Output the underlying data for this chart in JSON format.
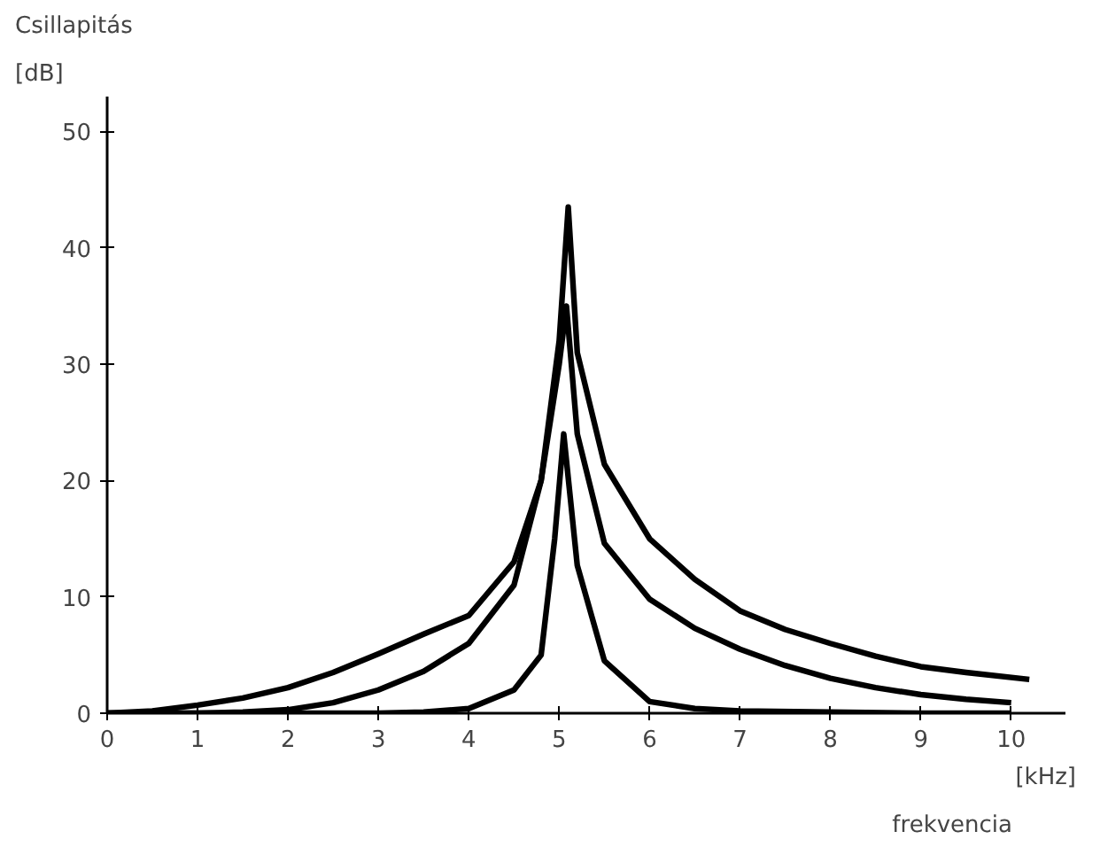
{
  "chart_data": {
    "type": "line",
    "xlabel": "frekvencia",
    "ylabel": "Csillapitás",
    "annotations": [
      "[dB]",
      "[kHz]"
    ],
    "xlim": [
      0,
      10.6
    ],
    "ylim": [
      0,
      53
    ],
    "xticks": [
      0,
      1,
      2,
      3,
      4,
      5,
      6,
      7,
      8,
      9,
      10
    ],
    "yticks": [
      0,
      10,
      20,
      30,
      40,
      50
    ],
    "grid": false,
    "marker": "none",
    "line_style": "solid",
    "series": [
      {
        "color": "#000000",
        "x": [
          0,
          0.5,
          1,
          1.5,
          2,
          2.5,
          3,
          3.5,
          4,
          4.5,
          4.8,
          5,
          5.1,
          5.2,
          5.5,
          6,
          6.5,
          7,
          7.5,
          8,
          8.5,
          9,
          9.5,
          10.2
        ],
        "values": [
          0,
          0.2,
          0.7,
          1.3,
          2.2,
          3.5,
          5.1,
          6.8,
          8.4,
          13,
          20,
          32,
          43.5,
          31,
          21.4,
          15,
          11.5,
          8.8,
          7.2,
          6,
          4.9,
          4,
          3.5,
          2.9
        ]
      },
      {
        "color": "#000000",
        "x": [
          0,
          1,
          1.5,
          2,
          2.5,
          3,
          3.5,
          4,
          4.5,
          4.8,
          5,
          5.08,
          5.2,
          5.5,
          6,
          6.5,
          7,
          7.5,
          8,
          8.5,
          9,
          9.5,
          10
        ],
        "values": [
          0,
          0,
          0.1,
          0.3,
          0.9,
          2,
          3.6,
          6,
          11,
          20,
          30,
          35,
          24,
          14.6,
          9.8,
          7.3,
          5.5,
          4.1,
          3,
          2.2,
          1.6,
          1.2,
          0.9
        ]
      },
      {
        "color": "#000000",
        "x": [
          0,
          1,
          2,
          3,
          3.5,
          4,
          4.5,
          4.8,
          4.95,
          5.05,
          5.2,
          5.5,
          6,
          6.5,
          7,
          8,
          9,
          10
        ],
        "values": [
          0,
          0,
          0,
          0,
          0.1,
          0.4,
          2,
          5,
          15,
          24,
          12.7,
          4.5,
          1,
          0.4,
          0.2,
          0.1,
          0,
          0
        ]
      }
    ]
  }
}
